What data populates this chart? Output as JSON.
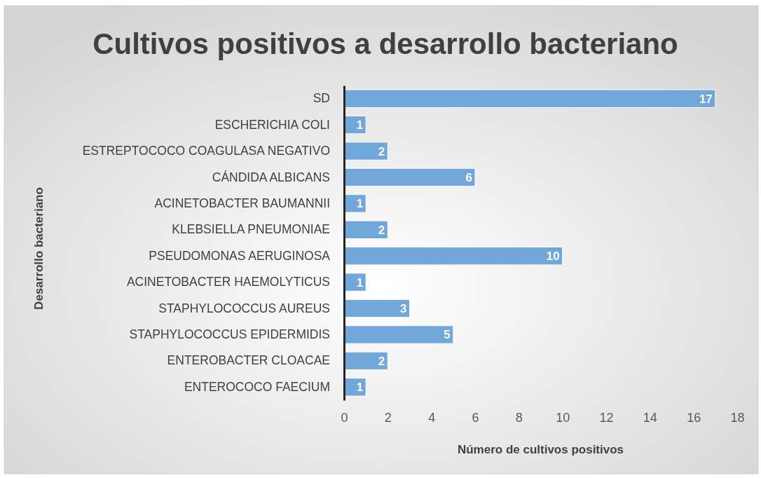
{
  "chart_data": {
    "type": "bar",
    "orientation": "horizontal",
    "title": "Cultivos positivos a desarrollo bacteriano",
    "xlabel": "Número de cultivos positivos",
    "ylabel": "Desarrollo bacteriano",
    "categories": [
      "SD",
      "ESCHERICHIA COLI",
      "ESTREPTOCOCO COAGULASA NEGATIVO",
      "CÁNDIDA ALBICANS",
      "ACINETOBACTER BAUMANNII",
      "KLEBSIELLA PNEUMONIAE",
      "PSEUDOMONAS AERUGINOSA",
      "ACINETOBACTER HAEMOLYTICUS",
      "STAPHYLOCOCCUS AUREUS",
      "STAPHYLOCOCCUS EPIDERMIDIS",
      "ENTEROBACTER CLOACAE",
      "ENTEROCOCO FAECIUM"
    ],
    "values": [
      17,
      1,
      2,
      6,
      1,
      2,
      10,
      1,
      3,
      5,
      2,
      1
    ],
    "color": "#72a7da",
    "xlim": [
      0,
      18
    ],
    "xticks": [
      0,
      2,
      4,
      6,
      8,
      10,
      12,
      14,
      16,
      18
    ],
    "data_labels": true,
    "grid": false
  }
}
